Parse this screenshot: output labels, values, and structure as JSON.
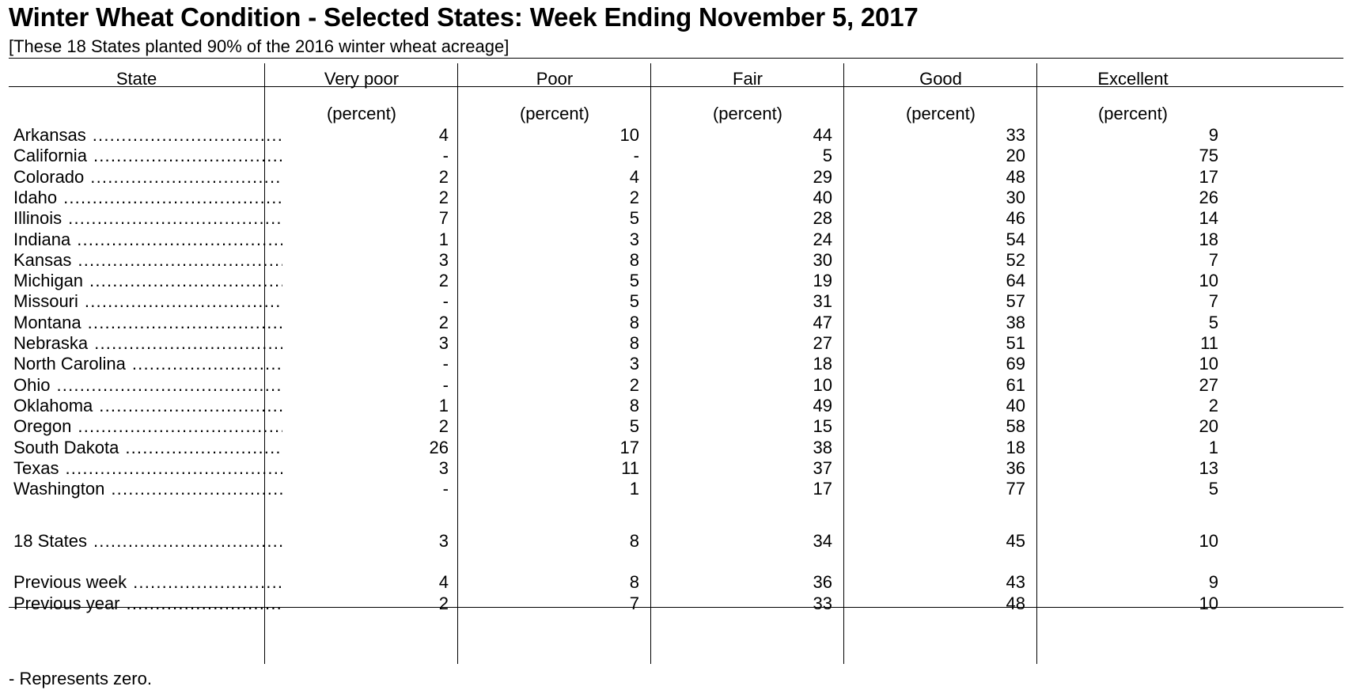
{
  "title": "Winter Wheat Condition - Selected States: Week Ending November 5, 2017",
  "subtitle": "[These 18 States planted 90% of the 2016 winter wheat acreage]",
  "table": {
    "headers": [
      "State",
      "Very poor",
      "Poor",
      "Fair",
      "Good",
      "Excellent"
    ],
    "units": [
      "(percent)",
      "(percent)",
      "(percent)",
      "(percent)",
      "(percent)"
    ],
    "rows": [
      {
        "state": "Arkansas",
        "values": [
          "4",
          "10",
          "44",
          "33",
          "9"
        ]
      },
      {
        "state": "California",
        "values": [
          "-",
          "-",
          "5",
          "20",
          "75"
        ]
      },
      {
        "state": "Colorado",
        "values": [
          "2",
          "4",
          "29",
          "48",
          "17"
        ]
      },
      {
        "state": "Idaho",
        "values": [
          "2",
          "2",
          "40",
          "30",
          "26"
        ]
      },
      {
        "state": "Illinois",
        "values": [
          "7",
          "5",
          "28",
          "46",
          "14"
        ]
      },
      {
        "state": "Indiana",
        "values": [
          "1",
          "3",
          "24",
          "54",
          "18"
        ]
      },
      {
        "state": "Kansas",
        "values": [
          "3",
          "8",
          "30",
          "52",
          "7"
        ]
      },
      {
        "state": "Michigan",
        "values": [
          "2",
          "5",
          "19",
          "64",
          "10"
        ]
      },
      {
        "state": "Missouri",
        "values": [
          "-",
          "5",
          "31",
          "57",
          "7"
        ]
      },
      {
        "state": "Montana",
        "values": [
          "2",
          "8",
          "47",
          "38",
          "5"
        ]
      },
      {
        "state": "Nebraska",
        "values": [
          "3",
          "8",
          "27",
          "51",
          "11"
        ]
      },
      {
        "state": "North Carolina",
        "values": [
          "-",
          "3",
          "18",
          "69",
          "10"
        ]
      },
      {
        "state": "Ohio",
        "values": [
          "-",
          "2",
          "10",
          "61",
          "27"
        ]
      },
      {
        "state": "Oklahoma",
        "values": [
          "1",
          "8",
          "49",
          "40",
          "2"
        ]
      },
      {
        "state": "Oregon",
        "values": [
          "2",
          "5",
          "15",
          "58",
          "20"
        ]
      },
      {
        "state": "South Dakota",
        "values": [
          "26",
          "17",
          "38",
          "18",
          "1"
        ]
      },
      {
        "state": "Texas",
        "values": [
          "3",
          "11",
          "37",
          "36",
          "13"
        ]
      },
      {
        "state": "Washington",
        "values": [
          "-",
          "1",
          "17",
          "77",
          "5"
        ]
      }
    ],
    "total": {
      "state": "18 States",
      "values": [
        "3",
        "8",
        "34",
        "45",
        "10"
      ]
    },
    "comparisons": [
      {
        "state": "Previous week",
        "values": [
          "4",
          "8",
          "36",
          "43",
          "9"
        ]
      },
      {
        "state": "Previous year",
        "values": [
          "2",
          "7",
          "33",
          "48",
          "10"
        ]
      }
    ]
  },
  "footnote": "- Represents zero."
}
